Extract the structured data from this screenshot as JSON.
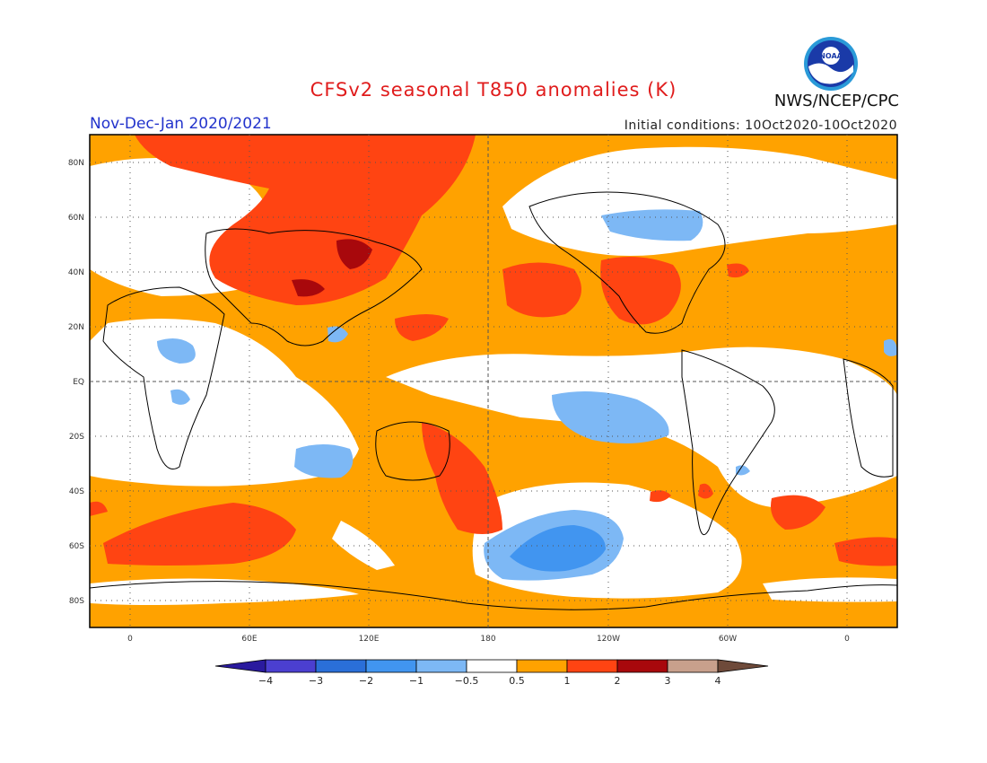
{
  "title": "CFSv2 seasonal T850 anomalies (K)",
  "season": "Nov-Dec-Jan 2020/2021",
  "initial_conditions": "Initial conditions: 10Oct2020-10Oct2020",
  "org": "NWS/NCEP/CPC",
  "logo_text": "NOAA",
  "lat_labels": [
    "80N",
    "60N",
    "40N",
    "20N",
    "EQ",
    "20S",
    "40S",
    "60S",
    "80S"
  ],
  "lon_labels": [
    "0",
    "60E",
    "120E",
    "180",
    "120W",
    "60W",
    "0"
  ],
  "colorbar": {
    "labels": [
      "-4",
      "-3",
      "-2",
      "-1",
      "-0.5",
      "0.5",
      "1",
      "2",
      "3",
      "4"
    ],
    "colors": [
      "#2a1a9e",
      "#4b3fd0",
      "#2a6fd8",
      "#4195f0",
      "#7db8f5",
      "#ffffff",
      "#ffa200",
      "#ff4412",
      "#a8080c",
      "#c8a08c",
      "#6e4a3a"
    ]
  }
}
